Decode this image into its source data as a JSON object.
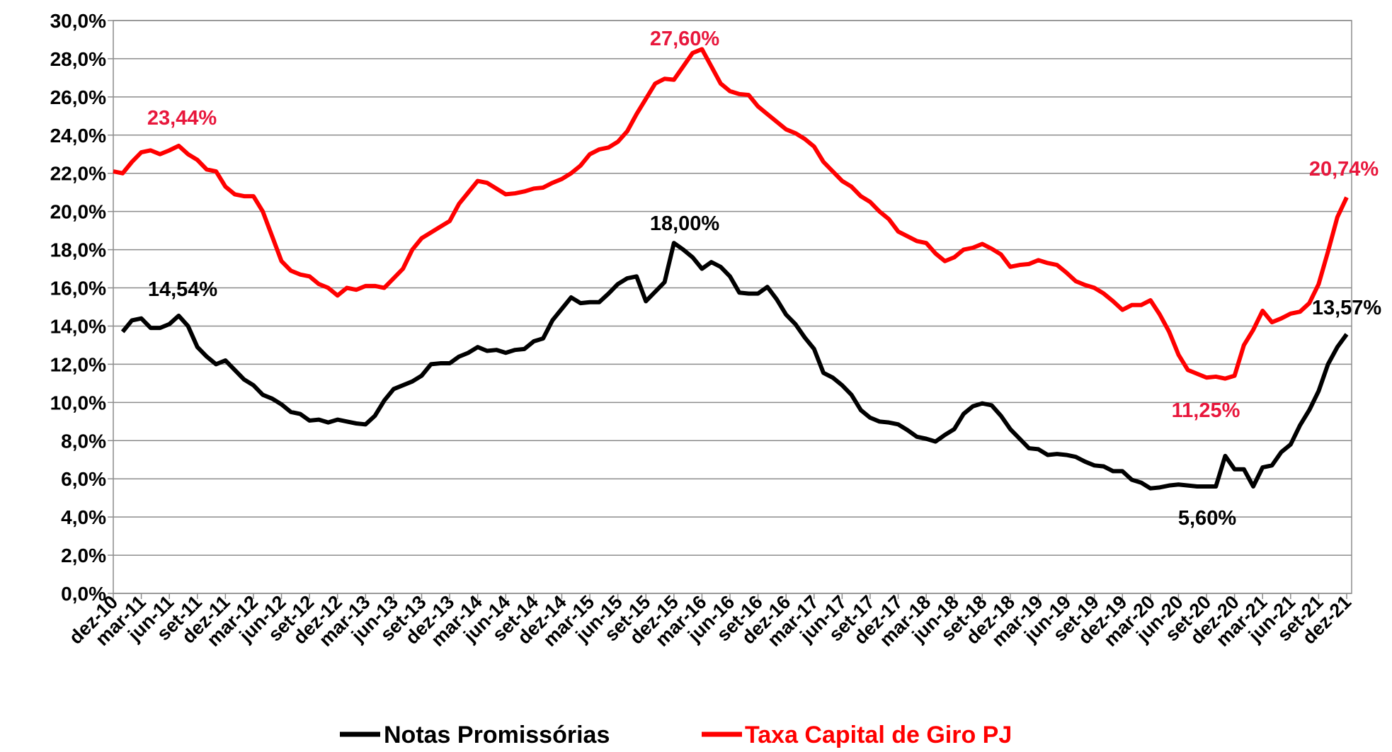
{
  "chart_data": {
    "type": "line",
    "categories": [
      "dez-10",
      null,
      null,
      "mar-11",
      null,
      null,
      "jun-11",
      null,
      null,
      "set-11",
      null,
      null,
      "dez-11",
      null,
      null,
      "mar-12",
      null,
      null,
      "jun-12",
      null,
      null,
      "set-12",
      null,
      null,
      "dez-12",
      null,
      null,
      "mar-13",
      null,
      null,
      "jun-13",
      null,
      null,
      "set-13",
      null,
      null,
      "dez-13",
      null,
      null,
      "mar-14",
      null,
      null,
      "jun-14",
      null,
      null,
      "set-14",
      null,
      null,
      "dez-14",
      null,
      null,
      "mar-15",
      null,
      null,
      "jun-15",
      null,
      null,
      "set-15",
      null,
      null,
      "dez-15",
      null,
      null,
      "mar-16",
      null,
      null,
      "jun-16",
      null,
      null,
      "set-16",
      null,
      null,
      "dez-16",
      null,
      null,
      "mar-17",
      null,
      null,
      "jun-17",
      null,
      null,
      "set-17",
      null,
      null,
      "dez-17",
      null,
      null,
      "mar-18",
      null,
      null,
      "jun-18",
      null,
      null,
      "set-18",
      null,
      null,
      "dez-18",
      null,
      null,
      "mar-19",
      null,
      null,
      "jun-19",
      null,
      null,
      "set-19",
      null,
      null,
      "dez-19",
      null,
      null,
      "mar-20",
      null,
      null,
      "jun-20",
      null,
      null,
      "set-20",
      null,
      null,
      "dez-20",
      null,
      null,
      "mar-21",
      null,
      null,
      "jun-21",
      null,
      null,
      "set-21",
      null,
      null,
      "dez-21"
    ],
    "series": [
      {
        "name": "Notas Promissórias",
        "color": "#000000",
        "values": [
          null,
          13.7,
          14.3,
          14.4,
          13.9,
          13.9,
          14.1,
          14.54,
          14.0,
          12.9,
          12.4,
          12.0,
          12.2,
          11.7,
          11.2,
          10.9,
          10.4,
          10.2,
          9.9,
          9.5,
          9.4,
          9.05,
          9.1,
          8.95,
          9.1,
          9.0,
          8.9,
          8.85,
          9.3,
          10.1,
          10.7,
          10.9,
          11.1,
          11.4,
          12.0,
          12.05,
          12.05,
          12.4,
          12.6,
          12.9,
          12.7,
          12.75,
          12.6,
          12.75,
          12.8,
          13.2,
          13.35,
          14.3,
          14.9,
          15.5,
          15.2,
          15.25,
          15.25,
          15.7,
          16.2,
          16.5,
          16.6,
          15.3,
          15.8,
          16.3,
          18.35,
          18.0,
          17.6,
          17.0,
          17.35,
          17.1,
          16.6,
          15.75,
          15.7,
          15.7,
          16.05,
          15.4,
          14.6,
          14.1,
          13.4,
          12.8,
          11.55,
          11.3,
          10.9,
          10.4,
          9.6,
          9.2,
          9.0,
          8.95,
          8.85,
          8.55,
          8.2,
          8.1,
          7.95,
          8.3,
          8.6,
          9.4,
          9.8,
          9.95,
          9.85,
          9.3,
          8.6,
          8.1,
          7.6,
          7.55,
          7.25,
          7.3,
          7.25,
          7.15,
          6.9,
          6.7,
          6.65,
          6.4,
          6.4,
          5.95,
          5.8,
          5.5,
          5.55,
          5.65,
          5.7,
          5.65,
          5.6,
          5.6,
          5.6,
          7.2,
          6.5,
          6.5,
          5.6,
          6.6,
          6.7,
          7.4,
          7.8,
          8.8,
          9.6,
          10.6,
          12.0,
          12.9,
          13.57
        ]
      },
      {
        "name": "Taxa Capital de Giro PJ",
        "color": "#ff0000",
        "values": [
          22.1,
          22.0,
          22.6,
          23.1,
          23.2,
          23.0,
          23.2,
          23.44,
          23.0,
          22.7,
          22.2,
          22.1,
          21.3,
          20.9,
          20.8,
          20.8,
          20.0,
          18.7,
          17.4,
          16.9,
          16.7,
          16.6,
          16.2,
          16.0,
          15.6,
          16.0,
          15.9,
          16.1,
          16.1,
          16.0,
          16.5,
          17.0,
          18.0,
          18.6,
          18.9,
          19.2,
          19.5,
          20.4,
          21.0,
          21.6,
          21.5,
          21.2,
          20.9,
          20.95,
          21.05,
          21.2,
          21.25,
          21.5,
          21.7,
          22.0,
          22.4,
          23.0,
          23.25,
          23.35,
          23.65,
          24.2,
          25.1,
          25.9,
          26.7,
          26.95,
          26.9,
          27.6,
          28.3,
          28.5,
          27.6,
          26.7,
          26.3,
          26.15,
          26.1,
          25.5,
          25.1,
          24.7,
          24.3,
          24.1,
          23.8,
          23.4,
          22.6,
          22.1,
          21.6,
          21.3,
          20.8,
          20.5,
          20.0,
          19.6,
          18.95,
          18.7,
          18.45,
          18.35,
          17.8,
          17.4,
          17.6,
          18.0,
          18.1,
          18.3,
          18.05,
          17.75,
          17.1,
          17.2,
          17.25,
          17.45,
          17.3,
          17.2,
          16.8,
          16.35,
          16.15,
          16.0,
          15.7,
          15.3,
          14.85,
          15.1,
          15.1,
          15.35,
          14.6,
          13.7,
          12.5,
          11.7,
          11.5,
          11.3,
          11.35,
          11.25,
          11.4,
          13.0,
          13.8,
          14.8,
          14.2,
          14.4,
          14.65,
          14.75,
          15.2,
          16.2,
          17.9,
          19.7,
          20.74
        ]
      }
    ],
    "ylim": [
      0,
      30
    ],
    "yticks": [
      {
        "value": 0,
        "label": "0,0%"
      },
      {
        "value": 2,
        "label": "2,0%"
      },
      {
        "value": 4,
        "label": "4,0%"
      },
      {
        "value": 6,
        "label": "6,0%"
      },
      {
        "value": 8,
        "label": "8,0%"
      },
      {
        "value": 10,
        "label": "10,0%"
      },
      {
        "value": 12,
        "label": "12,0%"
      },
      {
        "value": 14,
        "label": "14,0%"
      },
      {
        "value": 16,
        "label": "16,0%"
      },
      {
        "value": 18,
        "label": "18,0%"
      },
      {
        "value": 20,
        "label": "20,0%"
      },
      {
        "value": 22,
        "label": "22,0%"
      },
      {
        "value": 24,
        "label": "24,0%"
      },
      {
        "value": 26,
        "label": "26,0%"
      },
      {
        "value": 28,
        "label": "28,0%"
      },
      {
        "value": 30,
        "label": "30,0%"
      }
    ],
    "grid": true,
    "legend": "bottom",
    "annotations": [
      {
        "text": "23,44%",
        "color": "#e8173c"
      },
      {
        "text": "27,60%",
        "color": "#e8173c"
      },
      {
        "text": "20,74%",
        "color": "#e8173c"
      },
      {
        "text": "11,25%",
        "color": "#e8173c"
      },
      {
        "text": "14,54%",
        "color": "#000000"
      },
      {
        "text": "18,00%",
        "color": "#000000"
      },
      {
        "text": "13,57%",
        "color": "#000000"
      },
      {
        "text": "5,60%",
        "color": "#000000"
      }
    ]
  }
}
